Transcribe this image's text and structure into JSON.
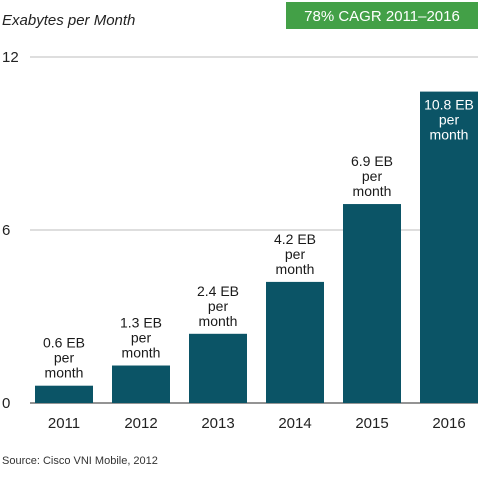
{
  "chart_data": {
    "type": "bar",
    "title": "",
    "ylabel": "Exabytes per Month",
    "xlabel": "",
    "categories": [
      "2011",
      "2012",
      "2013",
      "2014",
      "2015",
      "2016"
    ],
    "values": [
      0.6,
      1.3,
      2.4,
      4.2,
      6.9,
      10.8
    ],
    "data_labels": [
      [
        "0.6 EB",
        "per",
        "month"
      ],
      [
        "1.3 EB",
        "per",
        "month"
      ],
      [
        "2.4 EB",
        "per",
        "month"
      ],
      [
        "4.2 EB",
        "per",
        "month"
      ],
      [
        "6.9 EB",
        "per",
        "month"
      ],
      [
        "10.8 EB",
        "per",
        "month"
      ]
    ],
    "ylim": [
      0,
      12
    ],
    "yticks": [
      0,
      6,
      12
    ],
    "grid": true,
    "bar_color": "#0b5466",
    "inside_label_color": "#ffffff",
    "outside_label_color": "#1a1a1a",
    "gridline_color": "#bdbdbd"
  },
  "badge": {
    "text": "78% CAGR 2011–2016",
    "color": "#43a047",
    "text_color": "#ffffff"
  },
  "source": "Source: Cisco VNI Mobile, 2012"
}
